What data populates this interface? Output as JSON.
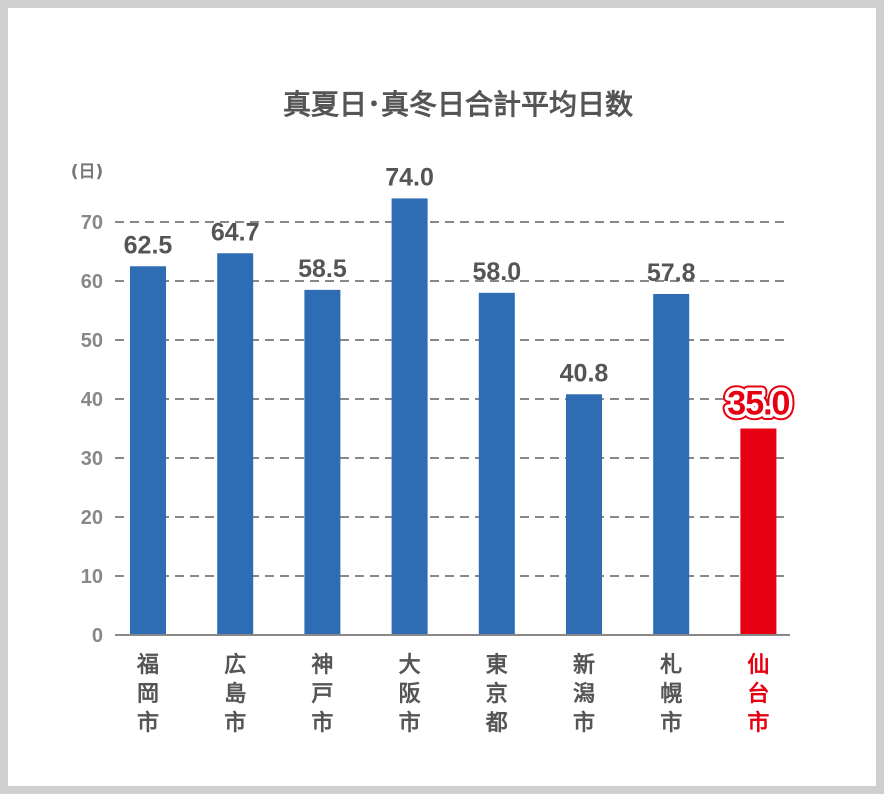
{
  "chart_data": {
    "type": "bar",
    "title": "真夏日･真冬日合計平均日数",
    "ylabel": "(日)",
    "xlabel": "",
    "ylim": [
      0,
      70
    ],
    "yticks": [
      0,
      10,
      20,
      30,
      40,
      50,
      60,
      70
    ],
    "ytick_labels": [
      "0",
      "10",
      "20",
      "30",
      "40",
      "50",
      "60",
      "70"
    ],
    "grid": true,
    "categories": [
      "福岡市",
      "広島市",
      "神戸市",
      "大阪市",
      "東京都",
      "新潟市",
      "札幌市",
      "仙台市"
    ],
    "values": [
      62.5,
      64.7,
      58.5,
      74.0,
      58.0,
      40.8,
      57.8,
      35.0
    ],
    "value_labels": [
      "62.5",
      "64.7",
      "58.5",
      "74.0",
      "58.0",
      "40.8",
      "57.8",
      "35.0"
    ],
    "highlight_index": 7,
    "colors": {
      "bar": "#2e6db4",
      "highlight": "#e60012",
      "text": "#555555",
      "grid": "#888888"
    }
  }
}
